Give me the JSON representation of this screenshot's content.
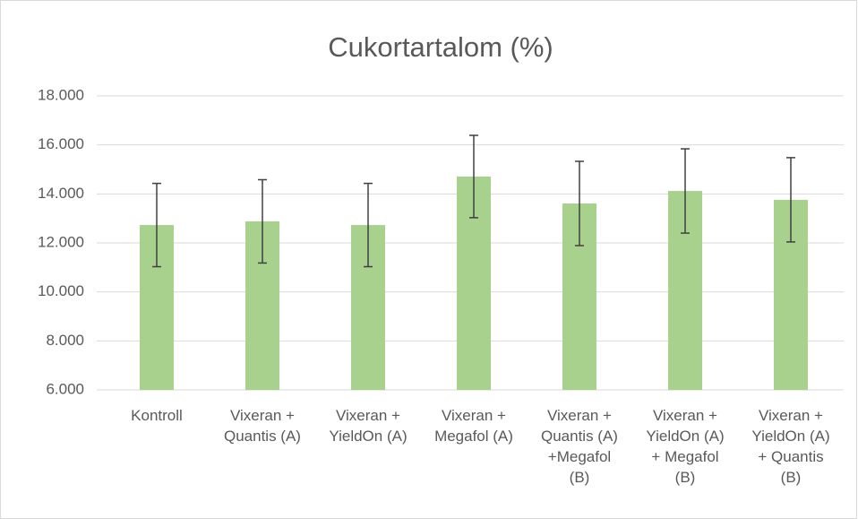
{
  "chart_data": {
    "type": "bar",
    "title": "Cukortartalom (%)",
    "categories": [
      "Kontroll",
      "Vixeran +\nQuantis (A)",
      "Vixeran +\nYieldOn (A)",
      "Vixeran +\nMegafol (A)",
      "Vixeran +\nQuantis (A)\n+Megafol\n(B)",
      "Vixeran +\nYieldOn (A)\n+ Megafol\n(B)",
      "Vixeran +\nYieldOn (A)\n+ Quantis\n(B)"
    ],
    "values": [
      12.73,
      12.88,
      12.73,
      14.71,
      13.61,
      14.12,
      13.76
    ],
    "errors": [
      1.7,
      1.7,
      1.7,
      1.68,
      1.72,
      1.72,
      1.72
    ],
    "color": "#a9d18e",
    "error_color": "#404040",
    "ylim": [
      6,
      18
    ],
    "yticks": [
      {
        "value": 6,
        "label": "6.000"
      },
      {
        "value": 8,
        "label": "8.000"
      },
      {
        "value": 10,
        "label": "10.000"
      },
      {
        "value": 12,
        "label": "12.000"
      },
      {
        "value": 14,
        "label": "14.000"
      },
      {
        "value": 16,
        "label": "16.000"
      },
      {
        "value": 18,
        "label": "18.000"
      }
    ],
    "grid": true
  }
}
